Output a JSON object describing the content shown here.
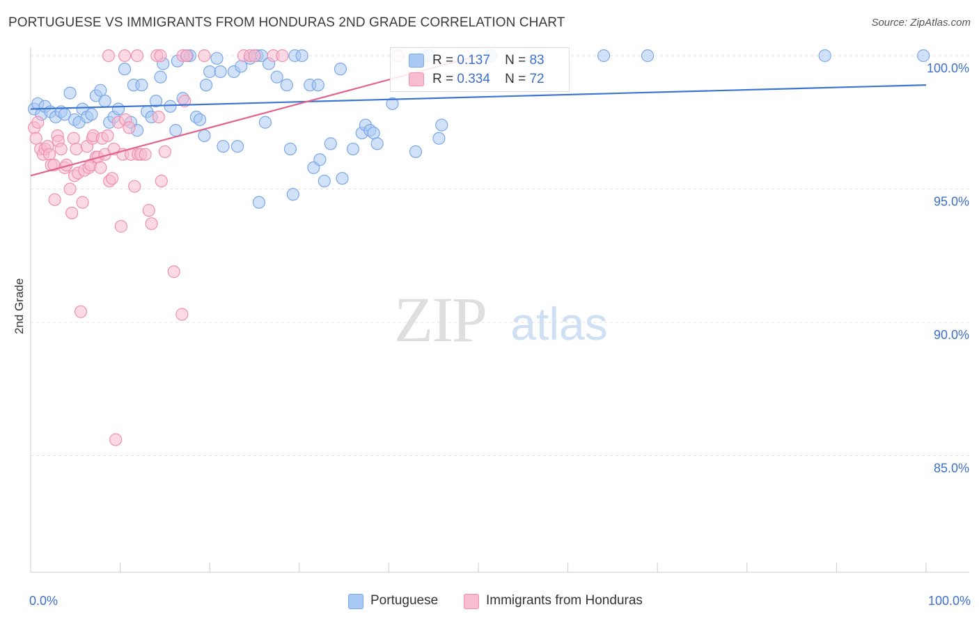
{
  "header": {
    "title": "PORTUGUESE VS IMMIGRANTS FROM HONDURAS 2ND GRADE CORRELATION CHART",
    "source": "Source: ZipAtlas.com"
  },
  "watermark": {
    "zip": "ZIP",
    "atlas": "atlas"
  },
  "legend": {
    "r_label": "R =",
    "n_label": "N =",
    "series": [
      {
        "name": "Portuguese",
        "r": "0.137",
        "n": "83",
        "color": "#7aa7e8",
        "fill": "#a9c8f3"
      },
      {
        "name": "Immigrants from Honduras",
        "r": "0.334",
        "n": "72",
        "color": "#ef8fb0",
        "fill": "#f7bcd0"
      }
    ]
  },
  "chart_data": {
    "type": "scatter",
    "title": "PORTUGUESE VS IMMIGRANTS FROM HONDURAS 2ND GRADE CORRELATION CHART",
    "xlabel": "",
    "ylabel": "2nd Grade",
    "xlim": [
      0,
      100
    ],
    "ylim": [
      80.5,
      100.8
    ],
    "x_tick_labels": {
      "0": "0.0%",
      "100": "100.0%"
    },
    "y_ticks": [
      100,
      95,
      90,
      85
    ],
    "y_tick_labels": [
      "100.0%",
      "95.0%",
      "90.0%",
      "85.0%"
    ],
    "grid": true,
    "legend_position": "top-center",
    "series": [
      {
        "name": "Portuguese",
        "color": "#3b74d1",
        "point_stroke": "#7aa7e8",
        "point_fill": "#a9c8f3",
        "trend": {
          "x": [
            0,
            100
          ],
          "y": [
            98.0,
            98.9
          ]
        },
        "points": [
          [
            0.4,
            98.0
          ],
          [
            0.8,
            98.2
          ],
          [
            1.2,
            97.8
          ],
          [
            1.6,
            98.1
          ],
          [
            2.2,
            97.9
          ],
          [
            2.8,
            97.7
          ],
          [
            3.4,
            97.9
          ],
          [
            3.8,
            97.8
          ],
          [
            4.4,
            98.6
          ],
          [
            4.9,
            97.6
          ],
          [
            5.4,
            97.5
          ],
          [
            5.8,
            98.0
          ],
          [
            6.3,
            97.7
          ],
          [
            6.8,
            97.8
          ],
          [
            7.3,
            98.5
          ],
          [
            7.8,
            98.7
          ],
          [
            8.3,
            98.3
          ],
          [
            8.8,
            97.5
          ],
          [
            9.3,
            97.7
          ],
          [
            9.8,
            98.0
          ],
          [
            10.5,
            99.5
          ],
          [
            11.2,
            97.5
          ],
          [
            11.5,
            98.9
          ],
          [
            11.9,
            97.2
          ],
          [
            12.4,
            98.9
          ],
          [
            13.0,
            97.9
          ],
          [
            13.5,
            97.7
          ],
          [
            14.0,
            98.3
          ],
          [
            14.5,
            99.2
          ],
          [
            14.8,
            99.7
          ],
          [
            15.6,
            98.1
          ],
          [
            16.4,
            99.8
          ],
          [
            16.2,
            97.2
          ],
          [
            17.0,
            98.4
          ],
          [
            17.5,
            100.0
          ],
          [
            17.8,
            100.0
          ],
          [
            18.5,
            97.7
          ],
          [
            18.9,
            97.6
          ],
          [
            19.4,
            97.0
          ],
          [
            19.6,
            98.9
          ],
          [
            20.0,
            99.4
          ],
          [
            20.8,
            99.9
          ],
          [
            21.2,
            99.4
          ],
          [
            21.5,
            96.6
          ],
          [
            22.7,
            99.4
          ],
          [
            23.1,
            96.6
          ],
          [
            23.5,
            99.6
          ],
          [
            24.5,
            99.9
          ],
          [
            25.3,
            100.0
          ],
          [
            25.5,
            94.5
          ],
          [
            25.8,
            100.0
          ],
          [
            26.2,
            97.5
          ],
          [
            26.6,
            99.7
          ],
          [
            27.5,
            99.2
          ],
          [
            28.6,
            98.9
          ],
          [
            29.0,
            96.5
          ],
          [
            29.3,
            94.8
          ],
          [
            29.5,
            100.0
          ],
          [
            30.3,
            100.0
          ],
          [
            31.2,
            98.9
          ],
          [
            31.6,
            95.8
          ],
          [
            32.1,
            98.9
          ],
          [
            32.3,
            96.1
          ],
          [
            32.8,
            95.3
          ],
          [
            33.5,
            96.7
          ],
          [
            34.6,
            99.5
          ],
          [
            34.8,
            95.4
          ],
          [
            36.0,
            96.5
          ],
          [
            37.0,
            97.1
          ],
          [
            37.4,
            97.4
          ],
          [
            37.9,
            97.2
          ],
          [
            38.3,
            97.1
          ],
          [
            38.7,
            96.7
          ],
          [
            40.4,
            98.2
          ],
          [
            43.0,
            96.4
          ],
          [
            44.0,
            100.0
          ],
          [
            44.5,
            100.0
          ],
          [
            45.6,
            96.9
          ],
          [
            45.9,
            97.4
          ],
          [
            51.4,
            100.0
          ],
          [
            64.0,
            100.0
          ],
          [
            68.9,
            100.0
          ],
          [
            88.7,
            100.0
          ],
          [
            99.7,
            100.0
          ]
        ]
      },
      {
        "name": "Immigrants from Honduras",
        "color": "#e2628c",
        "point_stroke": "#ef8fb0",
        "point_fill": "#f7bcd0",
        "trend": {
          "x": [
            0,
            50
          ],
          "y": [
            95.5,
            100.0
          ]
        },
        "points": [
          [
            0.4,
            97.3
          ],
          [
            0.6,
            96.9
          ],
          [
            0.8,
            97.5
          ],
          [
            1.1,
            96.5
          ],
          [
            1.4,
            96.3
          ],
          [
            1.6,
            96.5
          ],
          [
            1.9,
            96.6
          ],
          [
            2.1,
            96.3
          ],
          [
            2.3,
            95.9
          ],
          [
            2.6,
            95.9
          ],
          [
            2.7,
            94.6
          ],
          [
            3.0,
            97.0
          ],
          [
            3.1,
            96.8
          ],
          [
            3.4,
            96.5
          ],
          [
            3.8,
            95.8
          ],
          [
            4.0,
            95.9
          ],
          [
            4.4,
            95.0
          ],
          [
            4.6,
            94.1
          ],
          [
            4.8,
            96.9
          ],
          [
            4.9,
            95.5
          ],
          [
            5.1,
            96.5
          ],
          [
            5.3,
            95.6
          ],
          [
            5.6,
            90.4
          ],
          [
            5.8,
            94.5
          ],
          [
            6.0,
            95.7
          ],
          [
            6.3,
            96.6
          ],
          [
            6.5,
            95.8
          ],
          [
            6.7,
            95.9
          ],
          [
            6.9,
            96.9
          ],
          [
            7.0,
            97.0
          ],
          [
            7.3,
            96.2
          ],
          [
            7.5,
            96.2
          ],
          [
            7.8,
            95.8
          ],
          [
            8.0,
            96.9
          ],
          [
            8.3,
            96.3
          ],
          [
            8.6,
            97.0
          ],
          [
            8.8,
            95.3
          ],
          [
            9.1,
            95.4
          ],
          [
            9.3,
            96.5
          ],
          [
            9.5,
            85.6
          ],
          [
            9.8,
            97.5
          ],
          [
            10.1,
            93.6
          ],
          [
            10.3,
            96.3
          ],
          [
            10.6,
            97.6
          ],
          [
            11.0,
            97.3
          ],
          [
            11.2,
            96.3
          ],
          [
            11.6,
            95.1
          ],
          [
            12.0,
            96.3
          ],
          [
            12.3,
            96.3
          ],
          [
            12.8,
            96.3
          ],
          [
            13.2,
            94.2
          ],
          [
            13.5,
            93.7
          ],
          [
            14.3,
            97.7
          ],
          [
            14.6,
            95.3
          ],
          [
            15.0,
            96.4
          ],
          [
            16.0,
            91.9
          ],
          [
            16.9,
            90.3
          ],
          [
            17.2,
            98.3
          ],
          [
            8.7,
            100.0
          ],
          [
            10.5,
            100.0
          ],
          [
            11.9,
            100.0
          ],
          [
            14.1,
            100.0
          ],
          [
            14.5,
            100.0
          ],
          [
            17.0,
            100.0
          ],
          [
            17.4,
            100.0
          ],
          [
            19.4,
            100.0
          ],
          [
            23.8,
            100.0
          ],
          [
            24.5,
            100.0
          ],
          [
            25.0,
            100.0
          ],
          [
            27.1,
            100.0
          ],
          [
            28.1,
            100.0
          ],
          [
            41.0,
            100.0
          ]
        ]
      }
    ]
  }
}
